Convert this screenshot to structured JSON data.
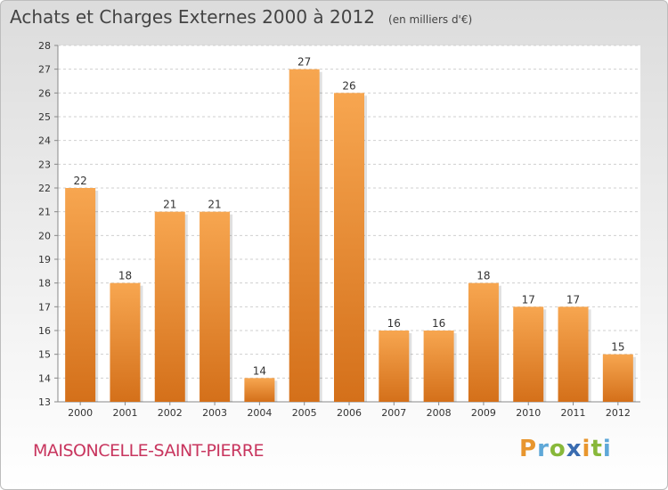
{
  "header": {
    "title": "Achats et Charges Externes 2000 à 2012",
    "unit": "(en milliers d'€)"
  },
  "footer": {
    "place": "MAISONCELLE-SAINT-PIERRE",
    "logo": {
      "letters": [
        {
          "char": "P",
          "color": "#e8962e"
        },
        {
          "char": "r",
          "color": "#5fa8d8"
        },
        {
          "char": "o",
          "color": "#88b83a"
        },
        {
          "char": "x",
          "color": "#3a6cb0"
        },
        {
          "char": "i",
          "color": "#e8962e"
        },
        {
          "char": "t",
          "color": "#88b83a"
        },
        {
          "char": "i",
          "color": "#5fa8d8"
        }
      ]
    }
  },
  "chart_data": {
    "type": "bar",
    "categories": [
      "2000",
      "2001",
      "2002",
      "2003",
      "2004",
      "2005",
      "2006",
      "2007",
      "2008",
      "2009",
      "2010",
      "2011",
      "2012"
    ],
    "values": [
      22,
      18,
      21,
      21,
      14,
      27,
      26,
      16,
      16,
      18,
      17,
      17,
      15
    ],
    "title": "Achats et Charges Externes 2000 à 2012",
    "unit": "(en milliers d'€)",
    "xlabel": "",
    "ylabel": "",
    "ylim": [
      13,
      28
    ],
    "yticks": [
      13,
      14,
      15,
      16,
      17,
      18,
      19,
      20,
      21,
      22,
      23,
      24,
      25,
      26,
      27,
      28
    ],
    "grid": true,
    "bar_color": "#f0963a",
    "bar_color_dark": "#d4701a",
    "show_value_labels": true
  }
}
